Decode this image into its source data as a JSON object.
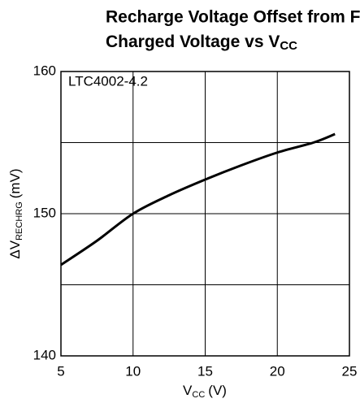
{
  "chart_data": {
    "type": "line",
    "title": {
      "line1": "Recharge Voltage Offset from Full",
      "line2": "Charged Voltage vs V",
      "line2_sub": "CC"
    },
    "annotation": "LTC4002-4.2",
    "xlabel": {
      "main": "V",
      "sub": "CC",
      "unit": "(V)"
    },
    "ylabel": {
      "main": "ΔV",
      "sub": "RECHRG",
      "unit": "(mV)"
    },
    "x": [
      5,
      7.5,
      10,
      12.5,
      15,
      17.5,
      20,
      22.5,
      24
    ],
    "series": [
      {
        "color": "#000000",
        "values": [
          146.4,
          148.1,
          150.0,
          151.3,
          152.4,
          153.4,
          154.3,
          155.0,
          155.6
        ]
      }
    ],
    "xlim": [
      5,
      25
    ],
    "xticks": [
      5,
      10,
      15,
      20,
      25
    ],
    "ylim": [
      140,
      160
    ],
    "yticks": [
      140,
      150,
      160
    ],
    "yminor": [
      145,
      155
    ],
    "grid": true
  }
}
